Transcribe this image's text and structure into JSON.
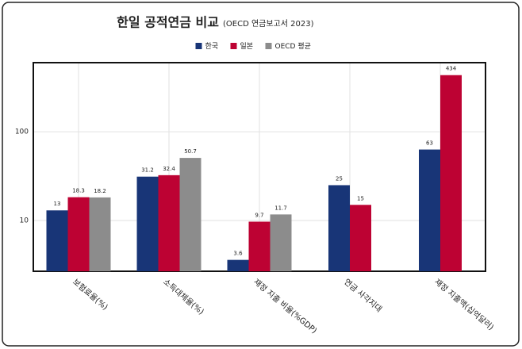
{
  "chart_data": {
    "type": "bar",
    "title": "한일 공적연금 비교",
    "subtitle": "(OECD 연금보고서 2023)",
    "categories": [
      "보험료율(%)",
      "소득대체율(%)",
      "재정 지출 비율(%GDP)",
      "연금 사각지대",
      "재정 지출액(십억달러)"
    ],
    "series": [
      {
        "name": "한국",
        "color": "#183577",
        "values": [
          13,
          31.2,
          3.6,
          25,
          63
        ]
      },
      {
        "name": "일본",
        "color": "#bd0233",
        "values": [
          18.3,
          32.4,
          9.7,
          15,
          434
        ]
      },
      {
        "name": "OECD 평균",
        "color": "#8c8c8c",
        "values": [
          18.2,
          50.7,
          11.7,
          null,
          null
        ]
      }
    ],
    "ylim": [
      2.68,
      600
    ],
    "yticks": [
      10,
      100
    ],
    "log_scale": true,
    "grid": true,
    "legend": "top"
  }
}
